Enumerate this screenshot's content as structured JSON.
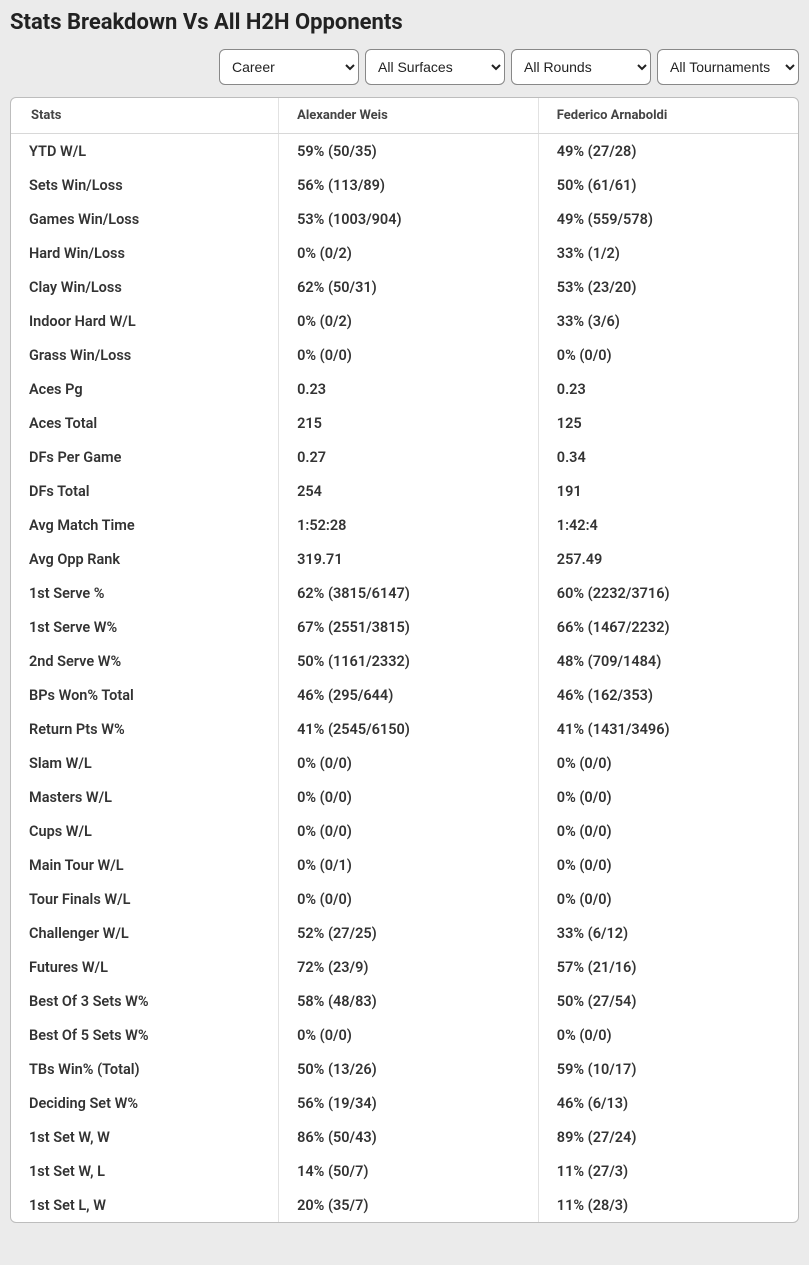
{
  "title": "Stats Breakdown Vs All H2H Opponents",
  "filters": {
    "career": "Career",
    "surfaces": "All Surfaces",
    "rounds": "All Rounds",
    "tournaments": "All Tournaments"
  },
  "columns": {
    "stats": "Stats",
    "player1": "Alexander Weis",
    "player2": "Federico Arnaboldi"
  },
  "rows": [
    {
      "stat": "YTD W/L",
      "p1": "59% (50/35)",
      "p2": "49% (27/28)"
    },
    {
      "stat": "Sets Win/Loss",
      "p1": "56% (113/89)",
      "p2": "50% (61/61)"
    },
    {
      "stat": "Games Win/Loss",
      "p1": "53% (1003/904)",
      "p2": "49% (559/578)"
    },
    {
      "stat": "Hard Win/Loss",
      "p1": "0% (0/2)",
      "p2": "33% (1/2)"
    },
    {
      "stat": "Clay Win/Loss",
      "p1": "62% (50/31)",
      "p2": "53% (23/20)"
    },
    {
      "stat": "Indoor Hard W/L",
      "p1": "0% (0/2)",
      "p2": "33% (3/6)"
    },
    {
      "stat": "Grass Win/Loss",
      "p1": "0% (0/0)",
      "p2": "0% (0/0)"
    },
    {
      "stat": "Aces Pg",
      "p1": "0.23",
      "p2": "0.23"
    },
    {
      "stat": "Aces Total",
      "p1": "215",
      "p2": "125"
    },
    {
      "stat": "DFs Per Game",
      "p1": "0.27",
      "p2": "0.34"
    },
    {
      "stat": "DFs Total",
      "p1": "254",
      "p2": "191"
    },
    {
      "stat": "Avg Match Time",
      "p1": "1:52:28",
      "p2": "1:42:4"
    },
    {
      "stat": "Avg Opp Rank",
      "p1": "319.71",
      "p2": "257.49"
    },
    {
      "stat": "1st Serve %",
      "p1": "62% (3815/6147)",
      "p2": "60% (2232/3716)"
    },
    {
      "stat": "1st Serve W%",
      "p1": "67% (2551/3815)",
      "p2": "66% (1467/2232)"
    },
    {
      "stat": "2nd Serve W%",
      "p1": "50% (1161/2332)",
      "p2": "48% (709/1484)"
    },
    {
      "stat": "BPs Won% Total",
      "p1": "46% (295/644)",
      "p2": "46% (162/353)"
    },
    {
      "stat": "Return Pts W%",
      "p1": "41% (2545/6150)",
      "p2": "41% (1431/3496)"
    },
    {
      "stat": "Slam W/L",
      "p1": "0% (0/0)",
      "p2": "0% (0/0)"
    },
    {
      "stat": "Masters W/L",
      "p1": "0% (0/0)",
      "p2": "0% (0/0)"
    },
    {
      "stat": "Cups W/L",
      "p1": "0% (0/0)",
      "p2": "0% (0/0)"
    },
    {
      "stat": "Main Tour W/L",
      "p1": "0% (0/1)",
      "p2": "0% (0/0)"
    },
    {
      "stat": "Tour Finals W/L",
      "p1": "0% (0/0)",
      "p2": "0% (0/0)"
    },
    {
      "stat": "Challenger W/L",
      "p1": "52% (27/25)",
      "p2": "33% (6/12)"
    },
    {
      "stat": "Futures W/L",
      "p1": "72% (23/9)",
      "p2": "57% (21/16)"
    },
    {
      "stat": "Best Of 3 Sets W%",
      "p1": "58% (48/83)",
      "p2": "50% (27/54)"
    },
    {
      "stat": "Best Of 5 Sets W%",
      "p1": "0% (0/0)",
      "p2": "0% (0/0)"
    },
    {
      "stat": "TBs Win% (Total)",
      "p1": "50% (13/26)",
      "p2": "59% (10/17)"
    },
    {
      "stat": "Deciding Set W%",
      "p1": "56% (19/34)",
      "p2": "46% (6/13)"
    },
    {
      "stat": "1st Set W, W",
      "p1": "86% (50/43)",
      "p2": "89% (27/24)"
    },
    {
      "stat": "1st Set W, L",
      "p1": "14% (50/7)",
      "p2": "11% (27/3)"
    },
    {
      "stat": "1st Set L, W",
      "p1": "20% (35/7)",
      "p2": "11% (28/3)"
    }
  ]
}
